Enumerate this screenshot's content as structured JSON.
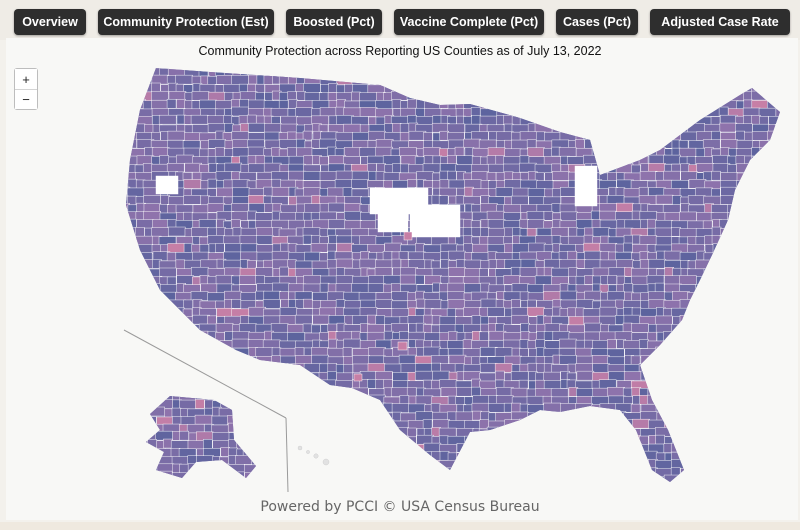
{
  "tabs": [
    {
      "label": "Overview"
    },
    {
      "label": "Community Protection (Est)"
    },
    {
      "label": "Boosted (Pct)"
    },
    {
      "label": "Vaccine Complete (Pct)"
    },
    {
      "label": "Cases (Pct)"
    },
    {
      "label": "Adjusted Case Rate"
    }
  ],
  "map": {
    "title": "Community Protection across Reporting US Counties as of July 13, 2022",
    "attribution": "Powered by PCCI © USA Census Bureau",
    "zoom_in_label": "+",
    "zoom_out_label": "−"
  },
  "colors": {
    "county_blue": "#5b639e",
    "county_purple": "#8f73ac",
    "county_pink": "#c77fa6",
    "no_data": "#ffffff",
    "county_border": "#ffffff"
  }
}
